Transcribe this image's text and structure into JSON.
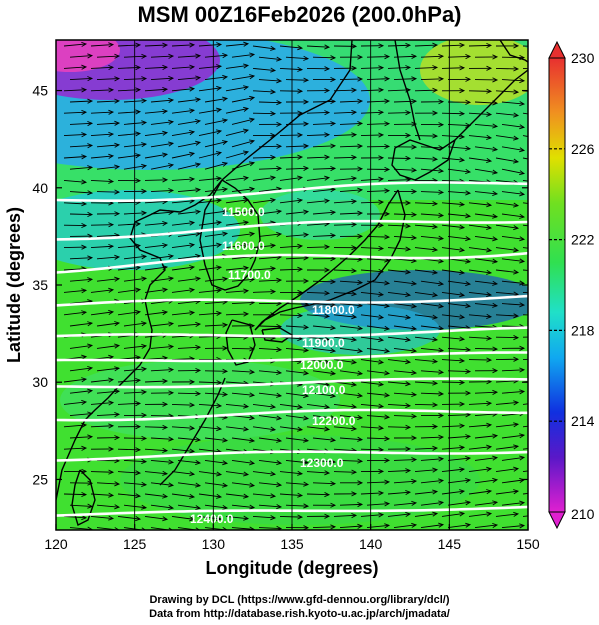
{
  "title": "MSM 00Z16Feb2026 (200.0hPa)",
  "credits": {
    "line1": "Drawing by DCL (https://www.gfd-dennou.org/library/dcl/)",
    "line2": "Data from http://database.rish.kyoto-u.ac.jp/arch/jmadata/"
  },
  "map": {
    "xlabel": "Longitude (degrees)",
    "ylabel": "Latitude  (degrees)",
    "lon_range": [
      120,
      150
    ],
    "lat_range": [
      22.4,
      47.6
    ],
    "lon_ticks": [
      "120",
      "125",
      "130",
      "135",
      "140",
      "145",
      "150"
    ],
    "lat_ticks": [
      "25",
      "30",
      "35",
      "40",
      "45"
    ],
    "contour_labels": [
      "11500.0",
      "11600.0",
      "11700.0",
      "11800.0",
      "11900.0",
      "12000.0",
      "12100.0",
      "12200.0",
      "12300.0",
      "12400.0"
    ],
    "colors": {
      "contour": "#ffffff",
      "coast": "#000000",
      "vector": "#000000"
    }
  },
  "colorbar": {
    "min": 210,
    "max": 230,
    "tick_labels": [
      "210",
      "214",
      "218",
      "222",
      "226",
      "230"
    ]
  }
}
